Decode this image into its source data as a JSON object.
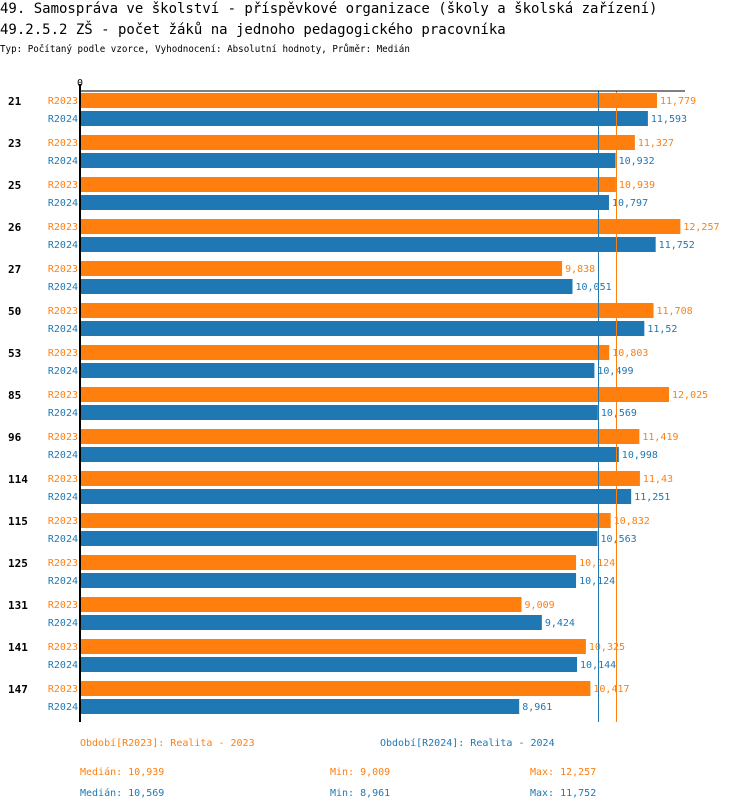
{
  "header": {
    "title": "49. Samospráva ve školství - příspěvkové organizace (školy a školská zařízení)",
    "subtitle_title": "49.2.5.2 ZŠ - počet žáků na jednoho pedagogického pracovníka",
    "meta": "Typ: Počítaný podle vzorce, Vyhodnocení: Absolutní hodnoty, Průměr: Medián"
  },
  "colors": {
    "R2023": "#ff7f0e",
    "R2024": "#1f77b4",
    "axis": "#000000"
  },
  "chart_data": {
    "type": "bar",
    "orientation": "horizontal",
    "title": "49.2.5.2 ZŠ - počet žáků na jednoho pedagogického pracovníka",
    "xlabel": "",
    "ylabel": "",
    "x_tick_labels": [
      "0"
    ],
    "xlim": [
      0,
      12.5
    ],
    "categories": [
      "21",
      "23",
      "25",
      "26",
      "27",
      "50",
      "53",
      "85",
      "96",
      "114",
      "115",
      "125",
      "131",
      "141",
      "147"
    ],
    "series": [
      {
        "name": "R2023",
        "label": "Období[R2023]: Realita - 2023",
        "values": [
          11.779,
          11.327,
          10.939,
          12.257,
          9.838,
          11.708,
          10.803,
          12.025,
          11.419,
          11.43,
          10.832,
          10.124,
          9.009,
          10.325,
          10.417
        ],
        "value_labels": [
          "11,779",
          "11,327",
          "10,939",
          "12,257",
          "9,838",
          "11,708",
          "10,803",
          "12,025",
          "11,419",
          "11,43",
          "10,832",
          "10,124",
          "9,009",
          "10,325",
          "10,417"
        ],
        "median": 10.939
      },
      {
        "name": "R2024",
        "label": "Období[R2024]: Realita - 2024",
        "values": [
          11.593,
          10.932,
          10.797,
          11.752,
          10.051,
          11.52,
          10.499,
          10.569,
          10.998,
          11.251,
          10.563,
          10.124,
          9.424,
          10.144,
          8.961
        ],
        "value_labels": [
          "11,593",
          "10,932",
          "10,797",
          "11,752",
          "10,051",
          "11,52",
          "10,499",
          "10,569",
          "10,998",
          "11,251",
          "10,563",
          "10,124",
          "9,424",
          "10,144",
          "8,961"
        ],
        "median": 10.569
      }
    ],
    "reference_lines": [
      {
        "series": "R2023",
        "kind": "median",
        "value": 10.939
      },
      {
        "series": "R2024",
        "kind": "median",
        "value": 10.569
      }
    ],
    "grid": false,
    "legend_position": "bottom"
  },
  "legend": {
    "r2023": "Období[R2023]: Realita - 2023",
    "r2024": "Období[R2024]: Realita - 2024"
  },
  "stats": {
    "r2023": {
      "median": "Medián: 10,939",
      "min": "Min: 9,009",
      "max": "Max: 12,257"
    },
    "r2024": {
      "median": "Medián: 10,569",
      "min": "Min: 8,961",
      "max": "Max: 11,752"
    }
  }
}
